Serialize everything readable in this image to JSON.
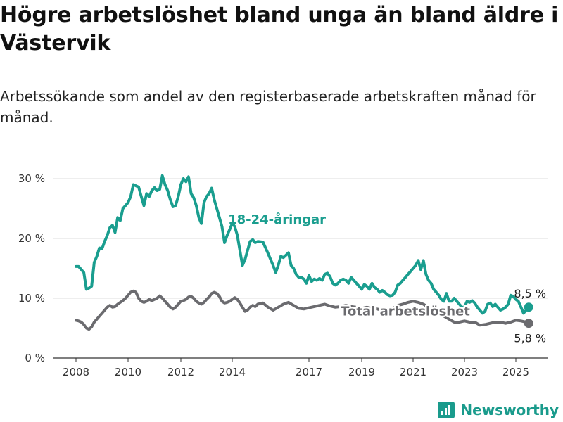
{
  "title": "Högre arbetslöshet bland unga än bland äldre i Västervik",
  "subtitle": "Arbetssökande som andel av den registerbaserade arbetskraften månad för månad.",
  "brand": {
    "name": "Newsworthy",
    "icon": "bar-chart-logo-icon"
  },
  "colors": {
    "youth": "#1a9e8f",
    "total": "#6b6b6f",
    "grid": "#dcdcdc",
    "axis": "#333333"
  },
  "chart_data": {
    "type": "line",
    "x_unit": "year",
    "x_ticks": [
      "2008",
      "2010",
      "2012",
      "2014",
      "2017",
      "2019",
      "2021",
      "2023",
      "2025"
    ],
    "y_ticks": [
      "0 %",
      "10 %",
      "20 %",
      "30 %"
    ],
    "ylim": [
      0,
      30
    ],
    "grid": "horizontal",
    "series": [
      {
        "name": "18-24-åringar",
        "color": "#1a9e8f",
        "end_label": "8,5 %",
        "points": [
          [
            2008.0,
            15.3
          ],
          [
            2008.1,
            15.3
          ],
          [
            2008.2,
            14.8
          ],
          [
            2008.3,
            14.3
          ],
          [
            2008.4,
            11.5
          ],
          [
            2008.5,
            11.7
          ],
          [
            2008.6,
            12.0
          ],
          [
            2008.7,
            16.0
          ],
          [
            2008.8,
            17.0
          ],
          [
            2008.9,
            18.4
          ],
          [
            2009.0,
            18.3
          ],
          [
            2009.1,
            19.5
          ],
          [
            2009.2,
            20.5
          ],
          [
            2009.3,
            21.8
          ],
          [
            2009.4,
            22.2
          ],
          [
            2009.5,
            21.0
          ],
          [
            2009.6,
            23.5
          ],
          [
            2009.7,
            23.0
          ],
          [
            2009.8,
            25.0
          ],
          [
            2009.9,
            25.5
          ],
          [
            2010.0,
            26.0
          ],
          [
            2010.1,
            27.0
          ],
          [
            2010.2,
            29.0
          ],
          [
            2010.3,
            28.8
          ],
          [
            2010.4,
            28.6
          ],
          [
            2010.5,
            27.0
          ],
          [
            2010.6,
            25.5
          ],
          [
            2010.7,
            27.5
          ],
          [
            2010.8,
            27.0
          ],
          [
            2010.9,
            28.0
          ],
          [
            2011.0,
            28.5
          ],
          [
            2011.1,
            28.0
          ],
          [
            2011.2,
            28.2
          ],
          [
            2011.3,
            30.5
          ],
          [
            2011.4,
            29.0
          ],
          [
            2011.5,
            28.0
          ],
          [
            2011.6,
            26.5
          ],
          [
            2011.7,
            25.3
          ],
          [
            2011.8,
            25.5
          ],
          [
            2011.9,
            27.0
          ],
          [
            2012.0,
            29.0
          ],
          [
            2012.1,
            30.0
          ],
          [
            2012.2,
            29.5
          ],
          [
            2012.3,
            30.3
          ],
          [
            2012.4,
            27.5
          ],
          [
            2012.5,
            26.8
          ],
          [
            2012.6,
            25.5
          ],
          [
            2012.7,
            23.5
          ],
          [
            2012.8,
            22.5
          ],
          [
            2012.9,
            26.0
          ],
          [
            2013.0,
            27.0
          ],
          [
            2013.1,
            27.5
          ],
          [
            2013.2,
            28.4
          ],
          [
            2013.3,
            26.5
          ],
          [
            2013.4,
            25.0
          ],
          [
            2013.5,
            23.5
          ],
          [
            2013.6,
            22.0
          ],
          [
            2013.7,
            19.3
          ],
          [
            2013.8,
            20.5
          ],
          [
            2013.9,
            21.5
          ],
          [
            2014.0,
            22.5
          ],
          [
            2014.1,
            22.0
          ],
          [
            2014.2,
            20.5
          ],
          [
            2014.3,
            18.0
          ],
          [
            2014.4,
            15.5
          ],
          [
            2014.5,
            16.5
          ],
          [
            2014.6,
            18.0
          ],
          [
            2014.7,
            19.5
          ],
          [
            2014.8,
            19.8
          ],
          [
            2014.9,
            19.3
          ],
          [
            2015.0,
            19.5
          ],
          [
            2015.2,
            19.4
          ],
          [
            2015.4,
            17.5
          ],
          [
            2015.6,
            15.5
          ],
          [
            2015.7,
            14.3
          ],
          [
            2015.8,
            15.5
          ],
          [
            2015.9,
            17.0
          ],
          [
            2016.0,
            16.8
          ],
          [
            2016.2,
            17.6
          ],
          [
            2016.3,
            15.5
          ],
          [
            2016.4,
            15.0
          ],
          [
            2016.5,
            14.0
          ],
          [
            2016.6,
            13.5
          ],
          [
            2016.7,
            13.5
          ],
          [
            2016.8,
            13.2
          ],
          [
            2016.9,
            12.5
          ],
          [
            2017.0,
            13.8
          ],
          [
            2017.1,
            12.8
          ],
          [
            2017.2,
            13.2
          ],
          [
            2017.3,
            13.0
          ],
          [
            2017.4,
            13.3
          ],
          [
            2017.5,
            13.0
          ],
          [
            2017.6,
            14.0
          ],
          [
            2017.7,
            14.2
          ],
          [
            2017.8,
            13.6
          ],
          [
            2017.9,
            12.5
          ],
          [
            2018.0,
            12.2
          ],
          [
            2018.1,
            12.5
          ],
          [
            2018.2,
            13.0
          ],
          [
            2018.3,
            13.2
          ],
          [
            2018.4,
            13.0
          ],
          [
            2018.5,
            12.5
          ],
          [
            2018.6,
            13.5
          ],
          [
            2018.7,
            13.0
          ],
          [
            2018.8,
            12.5
          ],
          [
            2018.9,
            12.0
          ],
          [
            2019.0,
            11.5
          ],
          [
            2019.1,
            12.3
          ],
          [
            2019.2,
            12.0
          ],
          [
            2019.3,
            11.5
          ],
          [
            2019.4,
            12.5
          ],
          [
            2019.5,
            11.8
          ],
          [
            2019.6,
            11.5
          ],
          [
            2019.7,
            11.0
          ],
          [
            2019.8,
            11.3
          ],
          [
            2019.9,
            11.0
          ],
          [
            2020.0,
            10.6
          ],
          [
            2020.1,
            10.4
          ],
          [
            2020.2,
            10.5
          ],
          [
            2020.3,
            11.0
          ],
          [
            2020.4,
            12.2
          ],
          [
            2020.5,
            12.5
          ],
          [
            2020.6,
            13.0
          ],
          [
            2020.7,
            13.5
          ],
          [
            2020.8,
            14.0
          ],
          [
            2020.9,
            14.5
          ],
          [
            2021.0,
            15.0
          ],
          [
            2021.1,
            15.5
          ],
          [
            2021.2,
            16.3
          ],
          [
            2021.3,
            14.8
          ],
          [
            2021.4,
            16.3
          ],
          [
            2021.5,
            14.0
          ],
          [
            2021.6,
            13.0
          ],
          [
            2021.7,
            12.5
          ],
          [
            2021.8,
            11.5
          ],
          [
            2021.9,
            11.0
          ],
          [
            2022.0,
            10.5
          ],
          [
            2022.1,
            9.8
          ],
          [
            2022.2,
            9.5
          ],
          [
            2022.3,
            10.8
          ],
          [
            2022.4,
            9.5
          ],
          [
            2022.5,
            9.5
          ],
          [
            2022.6,
            10.0
          ],
          [
            2022.7,
            9.5
          ],
          [
            2022.8,
            9.0
          ],
          [
            2022.9,
            8.5
          ],
          [
            2023.0,
            8.5
          ],
          [
            2023.1,
            9.5
          ],
          [
            2023.2,
            9.3
          ],
          [
            2023.3,
            9.6
          ],
          [
            2023.4,
            9.2
          ],
          [
            2023.5,
            8.5
          ],
          [
            2023.6,
            8.0
          ],
          [
            2023.7,
            7.5
          ],
          [
            2023.8,
            7.8
          ],
          [
            2023.9,
            9.0
          ],
          [
            2024.0,
            9.2
          ],
          [
            2024.1,
            8.6
          ],
          [
            2024.2,
            9.0
          ],
          [
            2024.3,
            8.5
          ],
          [
            2024.4,
            8.0
          ],
          [
            2024.5,
            8.2
          ],
          [
            2024.6,
            8.5
          ],
          [
            2024.7,
            9.0
          ],
          [
            2024.8,
            10.5
          ],
          [
            2024.9,
            10.3
          ],
          [
            2025.0,
            9.8
          ],
          [
            2025.1,
            9.5
          ],
          [
            2025.2,
            8.5
          ],
          [
            2025.3,
            7.5
          ],
          [
            2025.4,
            8.0
          ],
          [
            2025.5,
            8.5
          ]
        ]
      },
      {
        "name": "Total arbetslöshet",
        "color": "#6b6b6f",
        "end_label": "5,8 %",
        "points": [
          [
            2008.0,
            6.3
          ],
          [
            2008.1,
            6.2
          ],
          [
            2008.2,
            6.0
          ],
          [
            2008.3,
            5.6
          ],
          [
            2008.4,
            5.0
          ],
          [
            2008.5,
            4.8
          ],
          [
            2008.6,
            5.2
          ],
          [
            2008.7,
            6.0
          ],
          [
            2008.8,
            6.5
          ],
          [
            2008.9,
            7.0
          ],
          [
            2009.0,
            7.5
          ],
          [
            2009.1,
            8.0
          ],
          [
            2009.2,
            8.5
          ],
          [
            2009.3,
            8.8
          ],
          [
            2009.4,
            8.5
          ],
          [
            2009.5,
            8.6
          ],
          [
            2009.6,
            9.0
          ],
          [
            2009.7,
            9.3
          ],
          [
            2009.8,
            9.6
          ],
          [
            2009.9,
            10.0
          ],
          [
            2010.0,
            10.5
          ],
          [
            2010.1,
            11.0
          ],
          [
            2010.2,
            11.2
          ],
          [
            2010.3,
            11.0
          ],
          [
            2010.4,
            10.0
          ],
          [
            2010.5,
            9.5
          ],
          [
            2010.6,
            9.3
          ],
          [
            2010.7,
            9.5
          ],
          [
            2010.8,
            9.8
          ],
          [
            2010.9,
            9.6
          ],
          [
            2011.0,
            9.8
          ],
          [
            2011.1,
            10.0
          ],
          [
            2011.2,
            10.4
          ],
          [
            2011.3,
            10.0
          ],
          [
            2011.4,
            9.5
          ],
          [
            2011.5,
            9.0
          ],
          [
            2011.6,
            8.5
          ],
          [
            2011.7,
            8.2
          ],
          [
            2011.8,
            8.5
          ],
          [
            2011.9,
            9.0
          ],
          [
            2012.0,
            9.5
          ],
          [
            2012.1,
            9.6
          ],
          [
            2012.2,
            9.8
          ],
          [
            2012.3,
            10.2
          ],
          [
            2012.4,
            10.3
          ],
          [
            2012.5,
            10.0
          ],
          [
            2012.6,
            9.5
          ],
          [
            2012.7,
            9.2
          ],
          [
            2012.8,
            9.0
          ],
          [
            2012.9,
            9.3
          ],
          [
            2013.0,
            9.8
          ],
          [
            2013.1,
            10.2
          ],
          [
            2013.2,
            10.8
          ],
          [
            2013.3,
            11.0
          ],
          [
            2013.4,
            10.8
          ],
          [
            2013.5,
            10.3
          ],
          [
            2013.6,
            9.5
          ],
          [
            2013.7,
            9.2
          ],
          [
            2013.8,
            9.3
          ],
          [
            2013.9,
            9.5
          ],
          [
            2014.0,
            9.8
          ],
          [
            2014.1,
            10.1
          ],
          [
            2014.2,
            9.8
          ],
          [
            2014.3,
            9.2
          ],
          [
            2014.4,
            8.5
          ],
          [
            2014.5,
            7.8
          ],
          [
            2014.6,
            8.0
          ],
          [
            2014.7,
            8.5
          ],
          [
            2014.8,
            8.8
          ],
          [
            2014.9,
            8.6
          ],
          [
            2015.0,
            9.0
          ],
          [
            2015.2,
            9.2
          ],
          [
            2015.4,
            8.5
          ],
          [
            2015.6,
            8.0
          ],
          [
            2015.8,
            8.5
          ],
          [
            2016.0,
            9.0
          ],
          [
            2016.2,
            9.3
          ],
          [
            2016.4,
            8.8
          ],
          [
            2016.6,
            8.3
          ],
          [
            2016.8,
            8.2
          ],
          [
            2017.0,
            8.4
          ],
          [
            2017.2,
            8.6
          ],
          [
            2017.4,
            8.8
          ],
          [
            2017.6,
            9.0
          ],
          [
            2017.8,
            8.7
          ],
          [
            2018.0,
            8.5
          ],
          [
            2018.2,
            8.6
          ],
          [
            2018.4,
            8.8
          ],
          [
            2018.6,
            8.6
          ],
          [
            2018.8,
            8.5
          ],
          [
            2019.0,
            8.3
          ],
          [
            2019.2,
            8.5
          ],
          [
            2019.4,
            8.3
          ],
          [
            2019.6,
            8.2
          ],
          [
            2019.8,
            8.0
          ],
          [
            2020.0,
            8.0
          ],
          [
            2020.2,
            8.3
          ],
          [
            2020.4,
            8.8
          ],
          [
            2020.6,
            9.0
          ],
          [
            2020.8,
            9.3
          ],
          [
            2021.0,
            9.5
          ],
          [
            2021.2,
            9.3
          ],
          [
            2021.4,
            9.0
          ],
          [
            2021.6,
            8.5
          ],
          [
            2021.8,
            8.0
          ],
          [
            2022.0,
            7.5
          ],
          [
            2022.2,
            7.0
          ],
          [
            2022.4,
            6.5
          ],
          [
            2022.6,
            6.0
          ],
          [
            2022.8,
            6.0
          ],
          [
            2023.0,
            6.2
          ],
          [
            2023.2,
            6.0
          ],
          [
            2023.4,
            6.0
          ],
          [
            2023.6,
            5.5
          ],
          [
            2023.8,
            5.6
          ],
          [
            2024.0,
            5.8
          ],
          [
            2024.2,
            6.0
          ],
          [
            2024.4,
            6.0
          ],
          [
            2024.6,
            5.8
          ],
          [
            2024.8,
            6.0
          ],
          [
            2025.0,
            6.3
          ],
          [
            2025.2,
            6.2
          ],
          [
            2025.4,
            6.0
          ],
          [
            2025.5,
            5.8
          ]
        ]
      }
    ]
  }
}
